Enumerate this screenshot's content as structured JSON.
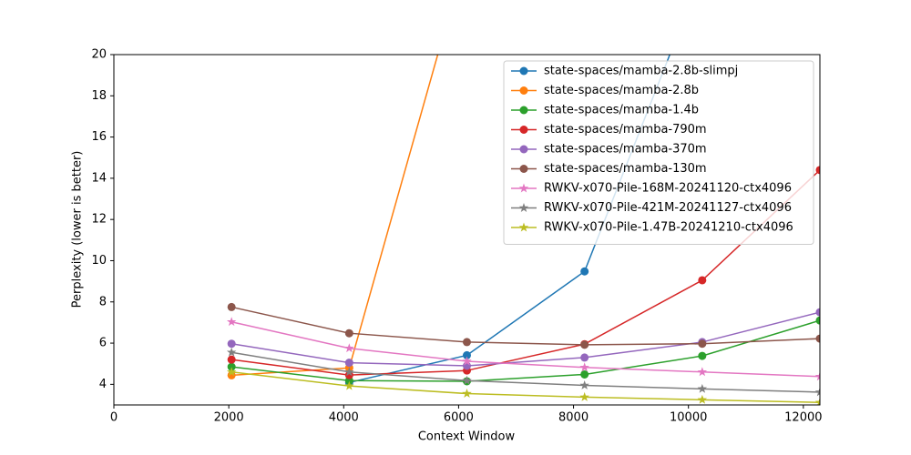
{
  "chart_data": {
    "type": "line",
    "x_label": "Context Window",
    "y_label": "Perplexity (lower is better)",
    "x": [
      2048,
      4096,
      6144,
      8192,
      10240,
      12288
    ],
    "xlim": [
      0,
      12288
    ],
    "xticks": [
      0,
      2000,
      4000,
      6000,
      8000,
      10000,
      12000
    ],
    "ylim": [
      3,
      20
    ],
    "yticks": [
      4,
      6,
      8,
      10,
      12,
      14,
      16,
      18,
      20
    ],
    "legend": "upper right",
    "series": [
      {
        "name": "state-spaces/mamba-2.8b-slimpj",
        "color": "#1f77b4",
        "marker": "circle",
        "values": [
          null,
          4.09,
          5.41,
          9.48,
          24,
          null
        ]
      },
      {
        "name": "state-spaces/mamba-2.8b",
        "color": "#ff7f0e",
        "marker": "circle",
        "values": [
          4.44,
          4.8,
          25,
          null,
          null,
          null
        ]
      },
      {
        "name": "state-spaces/mamba-1.4b",
        "color": "#2ca02c",
        "marker": "circle",
        "values": [
          4.85,
          4.18,
          4.15,
          4.48,
          5.38,
          7.1
        ]
      },
      {
        "name": "state-spaces/mamba-790m",
        "color": "#d62728",
        "marker": "circle",
        "values": [
          5.2,
          4.45,
          4.67,
          5.95,
          9.05,
          14.4
        ]
      },
      {
        "name": "state-spaces/mamba-370m",
        "color": "#9467bd",
        "marker": "circle",
        "values": [
          5.97,
          5.05,
          4.9,
          5.3,
          6.05,
          7.5
        ]
      },
      {
        "name": "state-spaces/mamba-130m",
        "color": "#8c564b",
        "marker": "circle",
        "values": [
          7.75,
          6.48,
          6.05,
          5.92,
          5.97,
          6.22
        ]
      },
      {
        "name": "RWKV-x070-Pile-168M-20241120-ctx4096",
        "color": "#e377c2",
        "marker": "star",
        "values": [
          7.03,
          5.75,
          5.12,
          4.82,
          4.6,
          4.38
        ]
      },
      {
        "name": "RWKV-x070-Pile-421M-20241127-ctx4096",
        "color": "#7f7f7f",
        "marker": "star",
        "values": [
          5.55,
          4.6,
          4.18,
          3.95,
          3.78,
          3.62
        ]
      },
      {
        "name": "RWKV-x070-Pile-1.47B-20241210-ctx4096",
        "color": "#bcbd22",
        "marker": "star",
        "values": [
          4.6,
          3.92,
          3.55,
          3.38,
          3.25,
          3.12
        ]
      }
    ]
  }
}
